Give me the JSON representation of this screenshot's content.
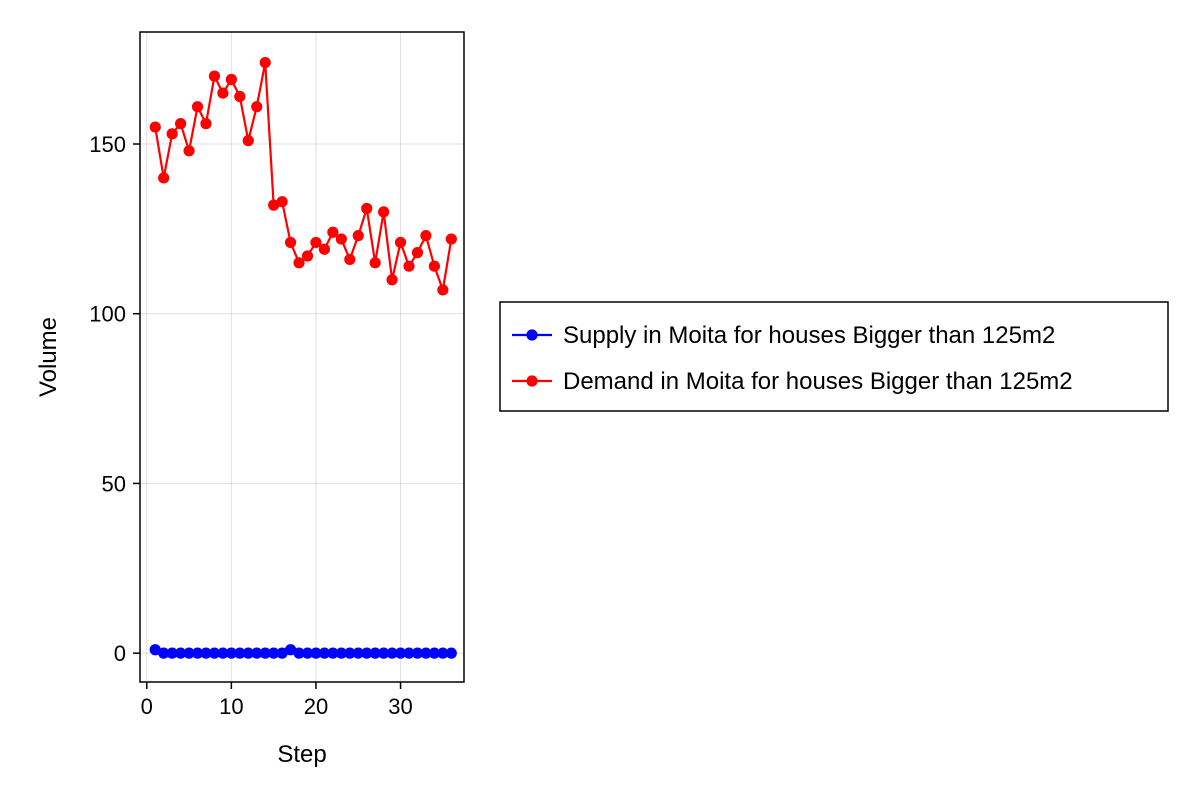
{
  "chart_data": {
    "type": "line",
    "title": "",
    "xlabel": "Step",
    "ylabel": "Volume",
    "xlim": [
      -0.8,
      37.5
    ],
    "ylim": [
      -8.5,
      183
    ],
    "xticks": [
      0,
      10,
      20,
      30
    ],
    "yticks": [
      0,
      50,
      100,
      150
    ],
    "grid": true,
    "legend_position": "right",
    "x": [
      1,
      2,
      3,
      4,
      5,
      6,
      7,
      8,
      9,
      10,
      11,
      12,
      13,
      14,
      15,
      16,
      17,
      18,
      19,
      20,
      21,
      22,
      23,
      24,
      25,
      26,
      27,
      28,
      29,
      30,
      31,
      32,
      33,
      34,
      35,
      36
    ],
    "series": [
      {
        "name": "Supply in Moita for houses Bigger than 125m2",
        "color": "#0000ff",
        "values": [
          1,
          0,
          0,
          0,
          0,
          0,
          0,
          0,
          0,
          0,
          0,
          0,
          0,
          0,
          0,
          0,
          1,
          0,
          0,
          0,
          0,
          0,
          0,
          0,
          0,
          0,
          0,
          0,
          0,
          0,
          0,
          0,
          0,
          0,
          0,
          0
        ]
      },
      {
        "name": "Demand in Moita for houses Bigger than 125m2",
        "color": "#ff0000",
        "values": [
          155,
          140,
          153,
          156,
          148,
          161,
          156,
          170,
          165,
          169,
          164,
          151,
          161,
          174,
          132,
          133,
          121,
          115,
          117,
          121,
          119,
          124,
          122,
          116,
          123,
          131,
          115,
          130,
          110,
          121,
          114,
          118,
          123,
          114,
          107,
          122
        ]
      }
    ]
  }
}
